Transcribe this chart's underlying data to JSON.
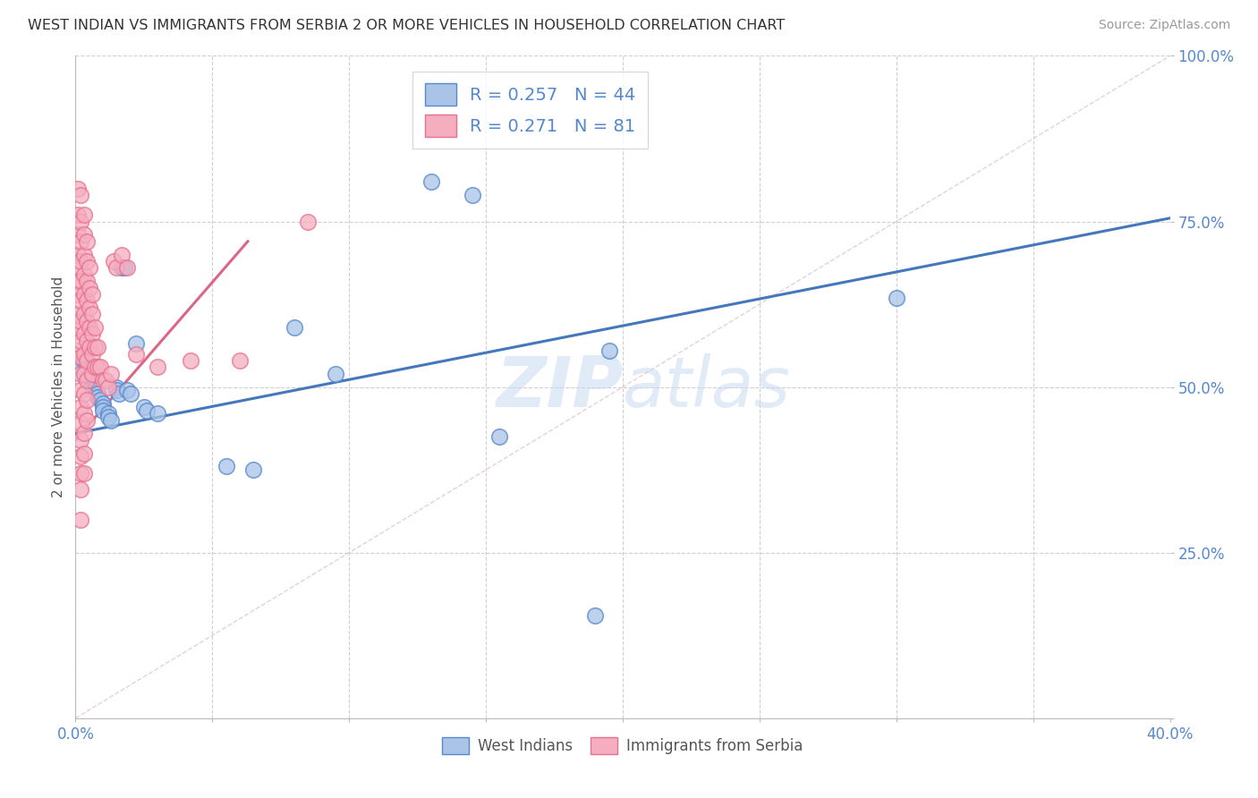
{
  "title": "WEST INDIAN VS IMMIGRANTS FROM SERBIA 2 OR MORE VEHICLES IN HOUSEHOLD CORRELATION CHART",
  "source": "Source: ZipAtlas.com",
  "ylabel": "2 or more Vehicles in Household",
  "x_min": 0.0,
  "x_max": 0.4,
  "y_min": 0.0,
  "y_max": 1.0,
  "legend1_label": "West Indians",
  "legend2_label": "Immigrants from Serbia",
  "blue_R": "0.257",
  "blue_N": "44",
  "pink_R": "0.271",
  "pink_N": "81",
  "blue_color": "#aac4e8",
  "pink_color": "#f5aec0",
  "blue_edge_color": "#5588cc",
  "pink_edge_color": "#e87090",
  "blue_line_color": "#4477bb",
  "pink_line_color": "#dd6688",
  "blue_line": [
    0.0,
    0.4,
    0.43,
    0.755
  ],
  "pink_line": [
    0.0,
    0.063,
    0.42,
    0.72
  ],
  "diag_line": [
    0.0,
    0.4,
    0.0,
    1.0
  ],
  "blue_scatter": [
    [
      0.001,
      0.535
    ],
    [
      0.002,
      0.53
    ],
    [
      0.003,
      0.54
    ],
    [
      0.003,
      0.54
    ],
    [
      0.004,
      0.53
    ],
    [
      0.004,
      0.53
    ],
    [
      0.005,
      0.52
    ],
    [
      0.005,
      0.515
    ],
    [
      0.005,
      0.51
    ],
    [
      0.006,
      0.51
    ],
    [
      0.006,
      0.505
    ],
    [
      0.006,
      0.5
    ],
    [
      0.007,
      0.5
    ],
    [
      0.007,
      0.495
    ],
    [
      0.008,
      0.49
    ],
    [
      0.008,
      0.485
    ],
    [
      0.009,
      0.48
    ],
    [
      0.01,
      0.475
    ],
    [
      0.01,
      0.47
    ],
    [
      0.01,
      0.465
    ],
    [
      0.012,
      0.46
    ],
    [
      0.012,
      0.455
    ],
    [
      0.013,
      0.45
    ],
    [
      0.015,
      0.5
    ],
    [
      0.015,
      0.495
    ],
    [
      0.016,
      0.49
    ],
    [
      0.017,
      0.68
    ],
    [
      0.018,
      0.68
    ],
    [
      0.019,
      0.495
    ],
    [
      0.02,
      0.49
    ],
    [
      0.022,
      0.565
    ],
    [
      0.025,
      0.47
    ],
    [
      0.026,
      0.465
    ],
    [
      0.03,
      0.46
    ],
    [
      0.055,
      0.38
    ],
    [
      0.065,
      0.375
    ],
    [
      0.08,
      0.59
    ],
    [
      0.095,
      0.52
    ],
    [
      0.13,
      0.81
    ],
    [
      0.145,
      0.79
    ],
    [
      0.155,
      0.425
    ],
    [
      0.195,
      0.555
    ],
    [
      0.19,
      0.155
    ],
    [
      0.3,
      0.635
    ]
  ],
  "pink_scatter": [
    [
      0.001,
      0.8
    ],
    [
      0.001,
      0.76
    ],
    [
      0.001,
      0.73
    ],
    [
      0.001,
      0.7
    ],
    [
      0.001,
      0.68
    ],
    [
      0.001,
      0.66
    ],
    [
      0.001,
      0.64
    ],
    [
      0.001,
      0.61
    ],
    [
      0.001,
      0.585
    ],
    [
      0.001,
      0.555
    ],
    [
      0.002,
      0.79
    ],
    [
      0.002,
      0.75
    ],
    [
      0.002,
      0.72
    ],
    [
      0.002,
      0.69
    ],
    [
      0.002,
      0.66
    ],
    [
      0.002,
      0.63
    ],
    [
      0.002,
      0.6
    ],
    [
      0.002,
      0.57
    ],
    [
      0.002,
      0.545
    ],
    [
      0.002,
      0.52
    ],
    [
      0.002,
      0.495
    ],
    [
      0.002,
      0.47
    ],
    [
      0.002,
      0.445
    ],
    [
      0.002,
      0.42
    ],
    [
      0.002,
      0.395
    ],
    [
      0.002,
      0.37
    ],
    [
      0.002,
      0.345
    ],
    [
      0.002,
      0.3
    ],
    [
      0.003,
      0.76
    ],
    [
      0.003,
      0.73
    ],
    [
      0.003,
      0.7
    ],
    [
      0.003,
      0.67
    ],
    [
      0.003,
      0.64
    ],
    [
      0.003,
      0.61
    ],
    [
      0.003,
      0.58
    ],
    [
      0.003,
      0.55
    ],
    [
      0.003,
      0.52
    ],
    [
      0.003,
      0.49
    ],
    [
      0.003,
      0.46
    ],
    [
      0.003,
      0.43
    ],
    [
      0.003,
      0.4
    ],
    [
      0.003,
      0.37
    ],
    [
      0.004,
      0.72
    ],
    [
      0.004,
      0.69
    ],
    [
      0.004,
      0.66
    ],
    [
      0.004,
      0.63
    ],
    [
      0.004,
      0.6
    ],
    [
      0.004,
      0.57
    ],
    [
      0.004,
      0.54
    ],
    [
      0.004,
      0.51
    ],
    [
      0.004,
      0.48
    ],
    [
      0.004,
      0.45
    ],
    [
      0.005,
      0.68
    ],
    [
      0.005,
      0.65
    ],
    [
      0.005,
      0.62
    ],
    [
      0.005,
      0.59
    ],
    [
      0.005,
      0.56
    ],
    [
      0.006,
      0.64
    ],
    [
      0.006,
      0.61
    ],
    [
      0.006,
      0.58
    ],
    [
      0.006,
      0.55
    ],
    [
      0.006,
      0.52
    ],
    [
      0.007,
      0.59
    ],
    [
      0.007,
      0.56
    ],
    [
      0.007,
      0.53
    ],
    [
      0.008,
      0.56
    ],
    [
      0.008,
      0.53
    ],
    [
      0.009,
      0.53
    ],
    [
      0.01,
      0.51
    ],
    [
      0.011,
      0.51
    ],
    [
      0.012,
      0.5
    ],
    [
      0.013,
      0.52
    ],
    [
      0.014,
      0.69
    ],
    [
      0.015,
      0.68
    ],
    [
      0.017,
      0.7
    ],
    [
      0.019,
      0.68
    ],
    [
      0.022,
      0.55
    ],
    [
      0.03,
      0.53
    ],
    [
      0.042,
      0.54
    ],
    [
      0.06,
      0.54
    ],
    [
      0.085,
      0.75
    ]
  ],
  "watermark_zip": "ZIP",
  "watermark_atlas": "atlas",
  "tick_color": "#5588cc",
  "grid_color": "#d0d0d0",
  "diag_color": "#ddbbcc"
}
